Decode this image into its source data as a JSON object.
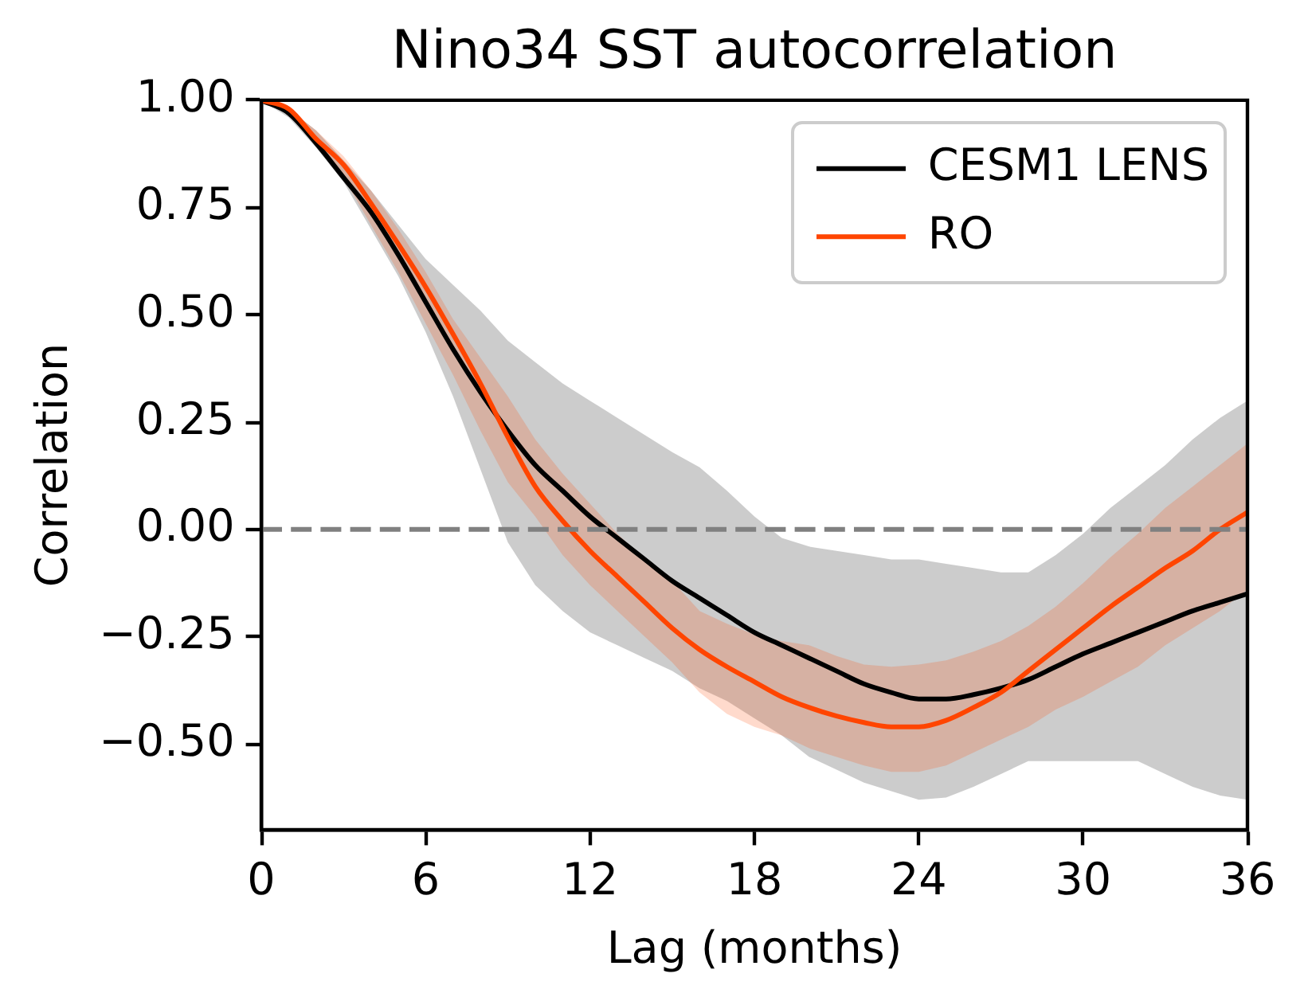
{
  "chart_data": {
    "type": "line",
    "title": "Nino34 SST autocorrelation",
    "xlabel": "Lag (months)",
    "ylabel": "Correlation",
    "x": [
      0,
      1,
      2,
      3,
      4,
      5,
      6,
      7,
      8,
      9,
      10,
      11,
      12,
      13,
      14,
      15,
      16,
      17,
      18,
      19,
      20,
      21,
      22,
      23,
      24,
      25,
      26,
      27,
      28,
      29,
      30,
      31,
      32,
      33,
      34,
      35,
      36
    ],
    "series": [
      {
        "name": "CESM1 LENS",
        "color": "#000000",
        "values": [
          1.0,
          0.97,
          0.9,
          0.82,
          0.74,
          0.64,
          0.53,
          0.42,
          0.32,
          0.23,
          0.15,
          0.09,
          0.03,
          -0.02,
          -0.07,
          -0.12,
          -0.16,
          -0.2,
          -0.24,
          -0.27,
          -0.3,
          -0.33,
          -0.36,
          -0.38,
          -0.395,
          -0.395,
          -0.385,
          -0.37,
          -0.35,
          -0.32,
          -0.29,
          -0.265,
          -0.24,
          -0.215,
          -0.19,
          -0.17,
          -0.15
        ],
        "lower": [
          1.0,
          0.96,
          0.89,
          0.81,
          0.7,
          0.59,
          0.46,
          0.31,
          0.14,
          -0.03,
          -0.13,
          -0.19,
          -0.24,
          -0.27,
          -0.3,
          -0.33,
          -0.37,
          -0.4,
          -0.44,
          -0.48,
          -0.53,
          -0.56,
          -0.59,
          -0.61,
          -0.63,
          -0.625,
          -0.6,
          -0.57,
          -0.54,
          -0.54,
          -0.54,
          -0.54,
          -0.54,
          -0.57,
          -0.6,
          -0.62,
          -0.63
        ],
        "upper": [
          1.0,
          0.98,
          0.93,
          0.86,
          0.79,
          0.71,
          0.63,
          0.57,
          0.51,
          0.44,
          0.39,
          0.34,
          0.3,
          0.26,
          0.22,
          0.18,
          0.145,
          0.09,
          0.03,
          -0.02,
          -0.04,
          -0.05,
          -0.06,
          -0.07,
          -0.07,
          -0.08,
          -0.09,
          -0.1,
          -0.1,
          -0.06,
          -0.01,
          0.05,
          0.1,
          0.15,
          0.21,
          0.26,
          0.3
        ]
      },
      {
        "name": "RO",
        "color": "#ff4500",
        "values": [
          1.0,
          0.98,
          0.91,
          0.85,
          0.76,
          0.665,
          0.565,
          0.455,
          0.34,
          0.215,
          0.1,
          0.02,
          -0.05,
          -0.11,
          -0.17,
          -0.23,
          -0.28,
          -0.32,
          -0.355,
          -0.39,
          -0.415,
          -0.435,
          -0.45,
          -0.46,
          -0.46,
          -0.445,
          -0.415,
          -0.38,
          -0.33,
          -0.28,
          -0.23,
          -0.18,
          -0.135,
          -0.09,
          -0.05,
          0.0,
          0.04
        ],
        "lower": [
          1.0,
          0.97,
          0.9,
          0.82,
          0.71,
          0.6,
          0.48,
          0.36,
          0.23,
          0.11,
          0.03,
          -0.06,
          -0.13,
          -0.19,
          -0.25,
          -0.31,
          -0.38,
          -0.43,
          -0.46,
          -0.48,
          -0.51,
          -0.53,
          -0.55,
          -0.565,
          -0.565,
          -0.55,
          -0.52,
          -0.49,
          -0.46,
          -0.42,
          -0.39,
          -0.355,
          -0.32,
          -0.27,
          -0.23,
          -0.19,
          -0.14
        ],
        "upper": [
          1.0,
          0.98,
          0.93,
          0.87,
          0.79,
          0.7,
          0.6,
          0.49,
          0.4,
          0.31,
          0.21,
          0.13,
          0.06,
          -0.01,
          -0.07,
          -0.12,
          -0.19,
          -0.22,
          -0.245,
          -0.26,
          -0.27,
          -0.295,
          -0.315,
          -0.32,
          -0.315,
          -0.305,
          -0.285,
          -0.26,
          -0.225,
          -0.18,
          -0.125,
          -0.065,
          -0.01,
          0.05,
          0.1,
          0.15,
          0.2
        ]
      }
    ],
    "xlim": [
      0,
      36
    ],
    "ylim": [
      -0.7,
      1.0
    ],
    "xticks": [
      0,
      6,
      12,
      18,
      24,
      30,
      36
    ],
    "yticks": [
      {
        "value": -0.5,
        "label": "−0.50"
      },
      {
        "value": -0.25,
        "label": "−0.25"
      },
      {
        "value": 0,
        "label": "0.00"
      },
      {
        "value": 0.25,
        "label": "0.25"
      },
      {
        "value": 0.5,
        "label": "0.50"
      },
      {
        "value": 0.75,
        "label": "0.75"
      },
      {
        "value": 1,
        "label": "1.00"
      }
    ],
    "ref_lines": [
      {
        "axis": "y",
        "value": 0,
        "color": "#808080",
        "line_style": "dashed"
      }
    ],
    "grid": false,
    "legend": "top right"
  }
}
